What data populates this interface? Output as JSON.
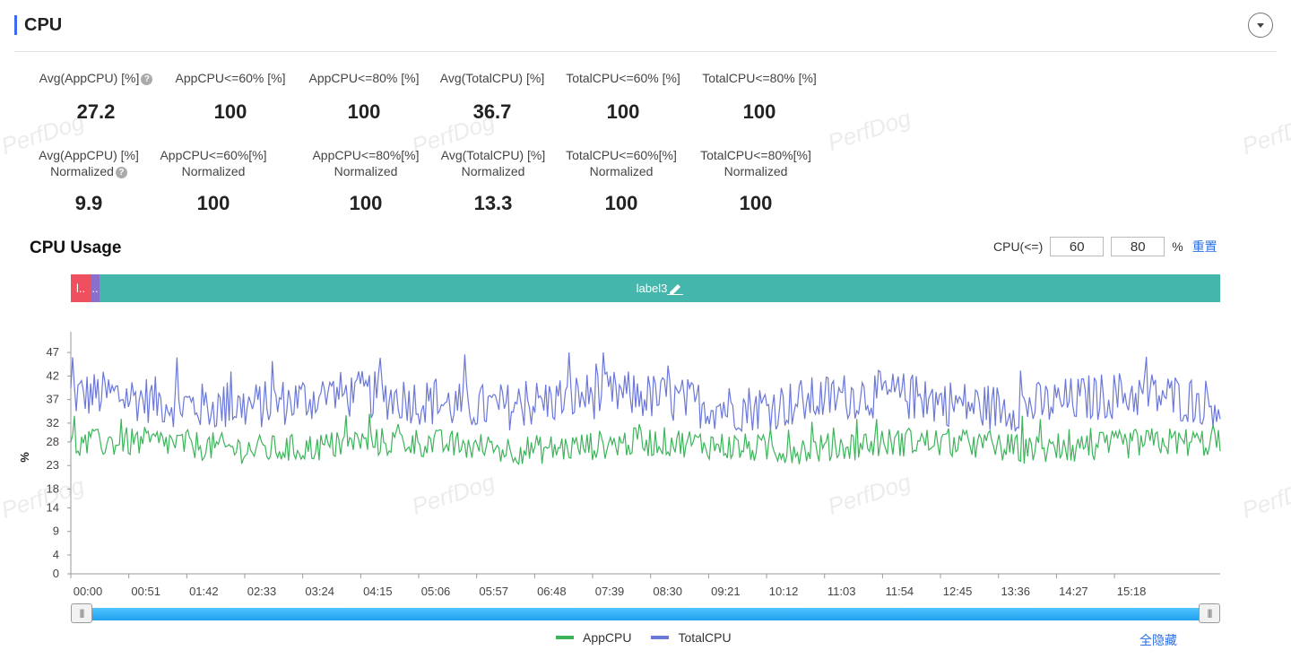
{
  "section_title": "CPU",
  "metrics_row1": [
    {
      "label": "Avg(AppCPU) [%]",
      "value": "27.2",
      "help": true
    },
    {
      "label": "AppCPU<=60% [%]",
      "value": "100"
    },
    {
      "label": "AppCPU<=80% [%]",
      "value": "100"
    },
    {
      "label": "Avg(TotalCPU) [%]",
      "value": "36.7"
    },
    {
      "label": "TotalCPU<=60% [%]",
      "value": "100"
    },
    {
      "label": "TotalCPU<=80% [%]",
      "value": "100"
    }
  ],
  "metrics_row2": [
    {
      "label1": "Avg(AppCPU) [%]",
      "label2": "Normalized",
      "value": "9.9",
      "help": true
    },
    {
      "label1": "AppCPU<=60%[%]",
      "label2": "Normalized",
      "value": "100"
    },
    {
      "label1": "AppCPU<=80%[%]",
      "label2": "Normalized",
      "value": "100"
    },
    {
      "label1": "Avg(TotalCPU) [%]",
      "label2": "Normalized",
      "value": "13.3"
    },
    {
      "label1": "TotalCPU<=60%[%]",
      "label2": "Normalized",
      "value": "100"
    },
    {
      "label1": "TotalCPU<=80%[%]",
      "label2": "Normalized",
      "value": "100"
    }
  ],
  "usage_title": "CPU Usage",
  "threshold": {
    "label": "CPU(<=)",
    "low": "60",
    "high": "80",
    "unit": "%",
    "reset": "重置"
  },
  "label_segments": [
    "l..",
    "..",
    "label3"
  ],
  "watermark": "PerfDog",
  "slider": {
    "start": 0.0,
    "end": 1.0,
    "grip": "|||"
  },
  "legend_hide_all": "全隐藏",
  "colors": {
    "app": "#3cb55a",
    "total": "#6b78d8",
    "accent": "#3d6af0",
    "link": "#2b6fe0"
  },
  "chart_data": {
    "type": "line",
    "title": "",
    "xlabel": "",
    "ylabel": "%",
    "y_ticks": [
      "0",
      "4",
      "9",
      "14",
      "18",
      "23",
      "28",
      "32",
      "37",
      "42",
      "47"
    ],
    "ylim": [
      0,
      49.5
    ],
    "x_ticks": [
      "00:00",
      "00:51",
      "01:42",
      "02:33",
      "03:24",
      "04:15",
      "05:06",
      "05:57",
      "06:48",
      "07:39",
      "08:30",
      "09:21",
      "10:12",
      "11:03",
      "11:54",
      "12:45",
      "13:36",
      "14:27",
      "15:18"
    ],
    "xlim_seconds": [
      0,
      1011
    ],
    "series": [
      {
        "name": "AppCPU",
        "color": "#3cb55a",
        "mean": 27.2,
        "min": 23,
        "max": 34
      },
      {
        "name": "TotalCPU",
        "color": "#6b78d8",
        "mean": 36.7,
        "min": 29,
        "max": 47
      }
    ]
  }
}
